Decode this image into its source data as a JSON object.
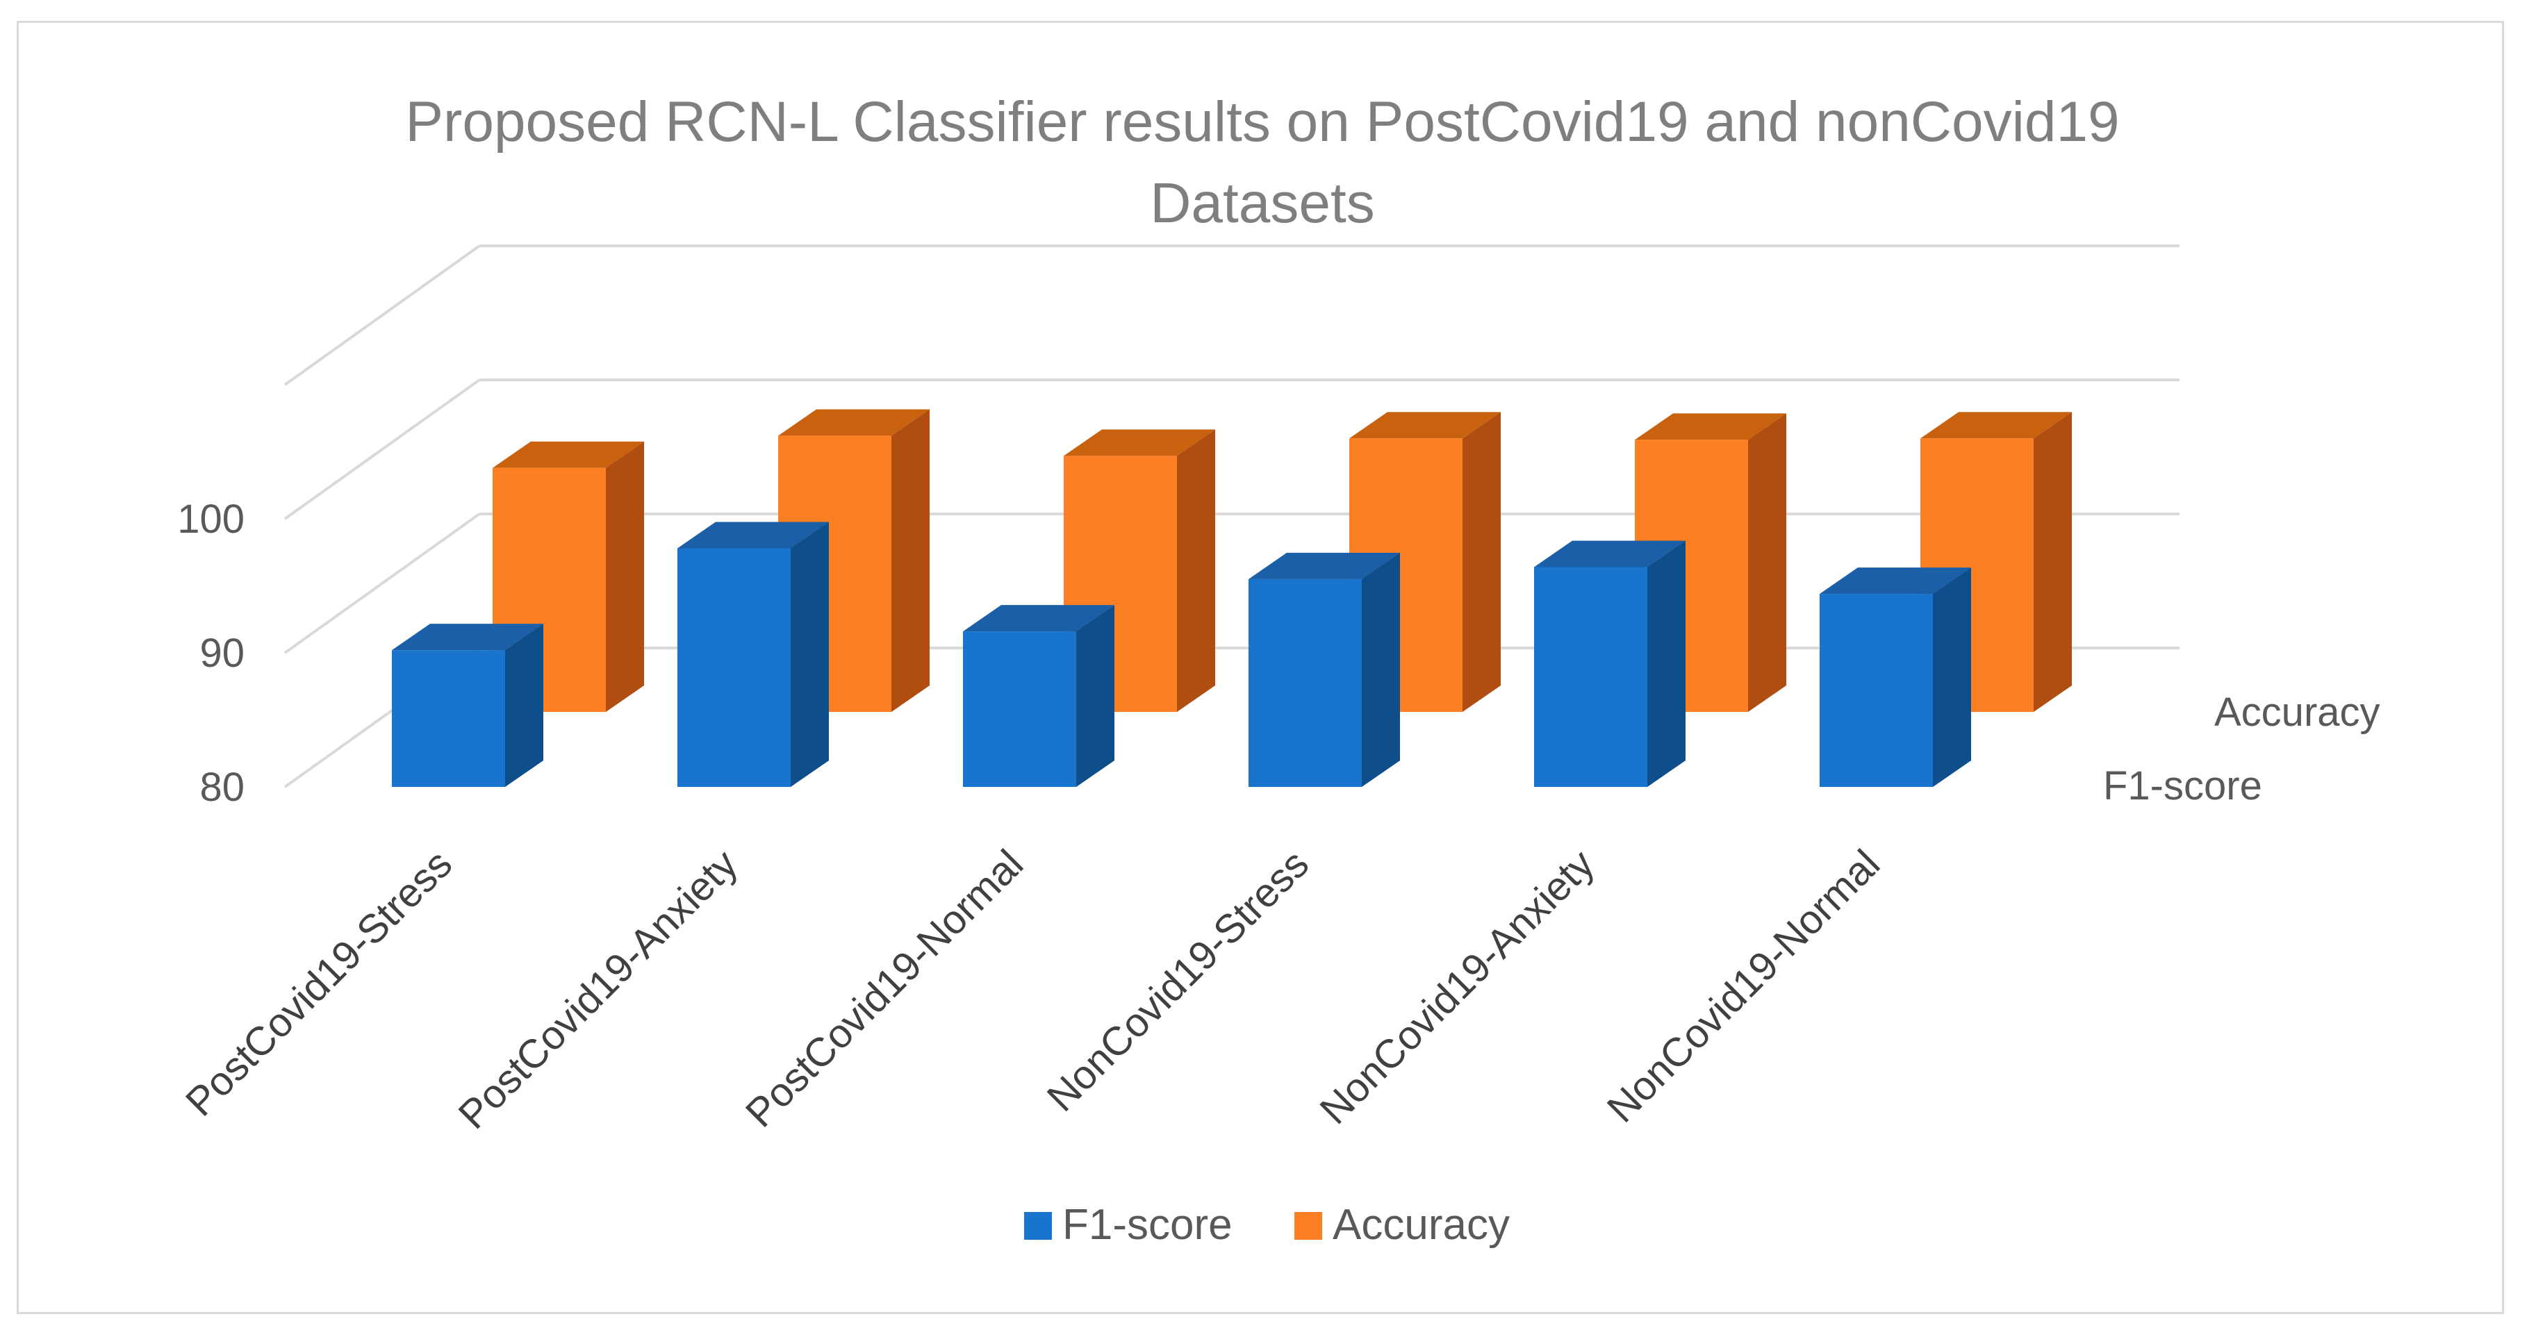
{
  "chart_data": {
    "type": "bar",
    "title_lines": [
      "Proposed RCN-L Classifier results on PostCovid19 and nonCovid19",
      "Datasets"
    ],
    "categories": [
      "PostCovid19-Stress",
      "PostCovid19-Anxiety",
      "PostCovid19-Normal",
      "NonCovid19-Stress",
      "NonCovid19-Anxiety",
      "NonCovid19-Normal"
    ],
    "series": [
      {
        "name": "F1-score",
        "values": [
          90.2,
          97.8,
          91.6,
          95.5,
          96.4,
          94.4
        ],
        "color": "#1874cd",
        "side_color": "#0e4f8b",
        "top_color": "#1a5fa8"
      },
      {
        "name": "Accuracy",
        "values": [
          98.2,
          100.6,
          99.1,
          100.4,
          100.3,
          100.4
        ],
        "color": "#fd7f24",
        "side_color": "#b04e12",
        "top_color": "#c9620f"
      }
    ],
    "ylim": [
      80,
      100
    ],
    "yticks": [
      "80",
      "90",
      "100"
    ],
    "depth_labels": [
      "F1-score",
      "Accuracy"
    ],
    "legend": {
      "position": "bottom",
      "entries": [
        "F1-score",
        "Accuracy"
      ]
    },
    "grid": true
  }
}
